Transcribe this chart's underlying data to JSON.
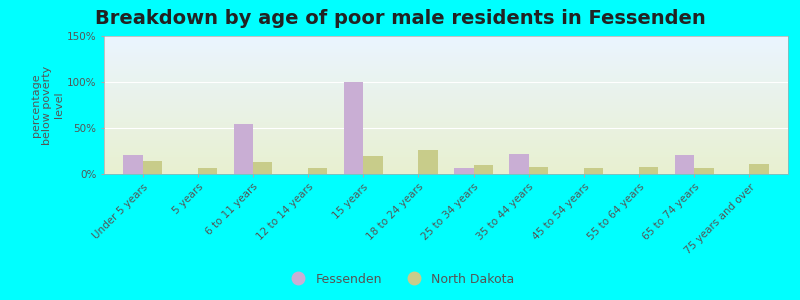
{
  "title": "Breakdown by age of poor male residents in Fessenden",
  "ylabel": "percentage\nbelow poverty\nlevel",
  "categories": [
    "Under 5 years",
    "5 years",
    "6 to 11 years",
    "12 to 14 years",
    "15 years",
    "18 to 24 years",
    "25 to 34 years",
    "35 to 44 years",
    "45 to 54 years",
    "55 to 64 years",
    "65 to 74 years",
    "75 years and over"
  ],
  "fessenden": [
    21,
    0,
    54,
    0,
    100,
    0,
    6,
    22,
    0,
    0,
    21,
    0
  ],
  "north_dakota": [
    14,
    6,
    13,
    7,
    20,
    26,
    10,
    8,
    6,
    8,
    7,
    11
  ],
  "fessenden_color": "#c9aed4",
  "north_dakota_color": "#c8cc8a",
  "background_top": "#eaf4ff",
  "background_bottom": "#e8f0d0",
  "outer_background": "#00ffff",
  "ylim": [
    0,
    150
  ],
  "yticks": [
    0,
    50,
    100,
    150
  ],
  "ytick_labels": [
    "0%",
    "50%",
    "100%",
    "150%"
  ],
  "bar_width": 0.35,
  "title_fontsize": 14,
  "axis_label_fontsize": 8,
  "tick_fontsize": 7.5,
  "legend_fontsize": 9,
  "gridline_color": "#ffffff",
  "text_color": "#555555",
  "title_color": "#222222"
}
